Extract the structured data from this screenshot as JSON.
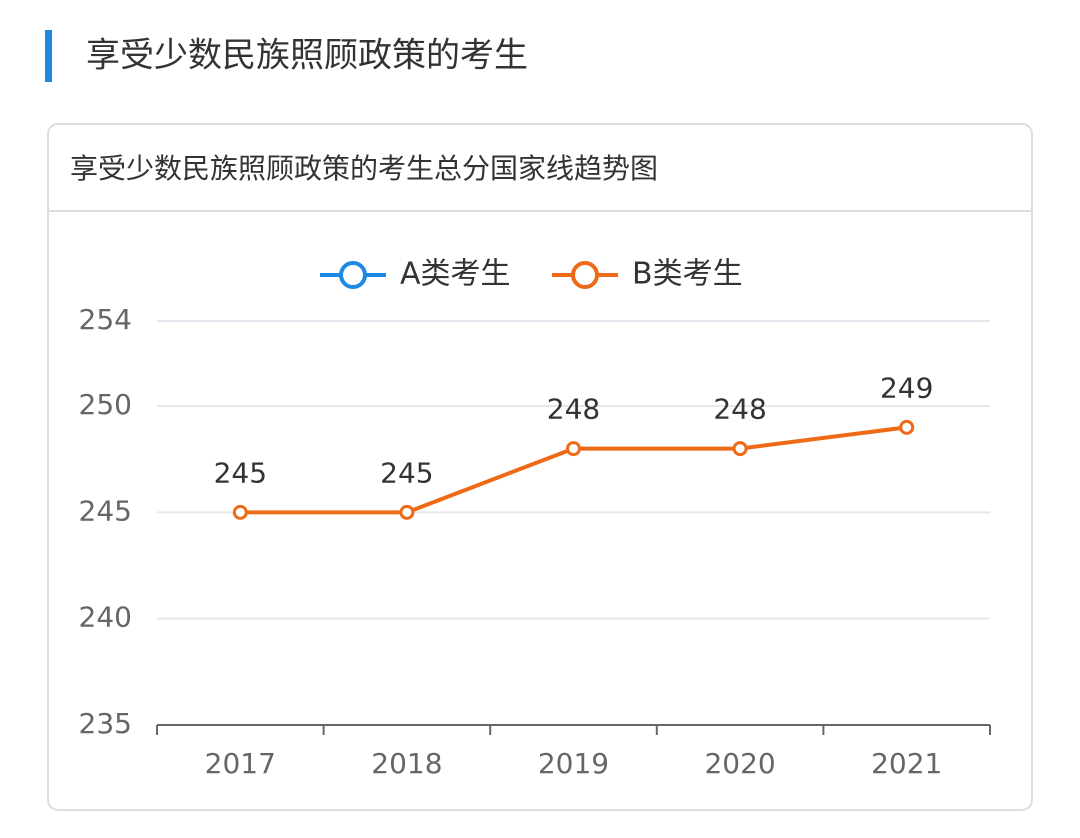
{
  "heading": "享受少数民族照顾政策的考生",
  "chart_data": {
    "type": "line",
    "title": "享受少数民族照顾政策的考生总分国家线趋势图",
    "categories": [
      "2017",
      "2018",
      "2019",
      "2020",
      "2021"
    ],
    "series": [
      {
        "name": "A类考生",
        "color": "#1e88e5",
        "values": [
          null,
          null,
          null,
          null,
          null
        ]
      },
      {
        "name": "B类考生",
        "color": "#ee6a16",
        "values": [
          245,
          245,
          248,
          248,
          249
        ]
      }
    ],
    "ylim": [
      235,
      254
    ],
    "yticks": [
      235,
      240,
      245,
      250,
      254
    ],
    "grid": true
  }
}
